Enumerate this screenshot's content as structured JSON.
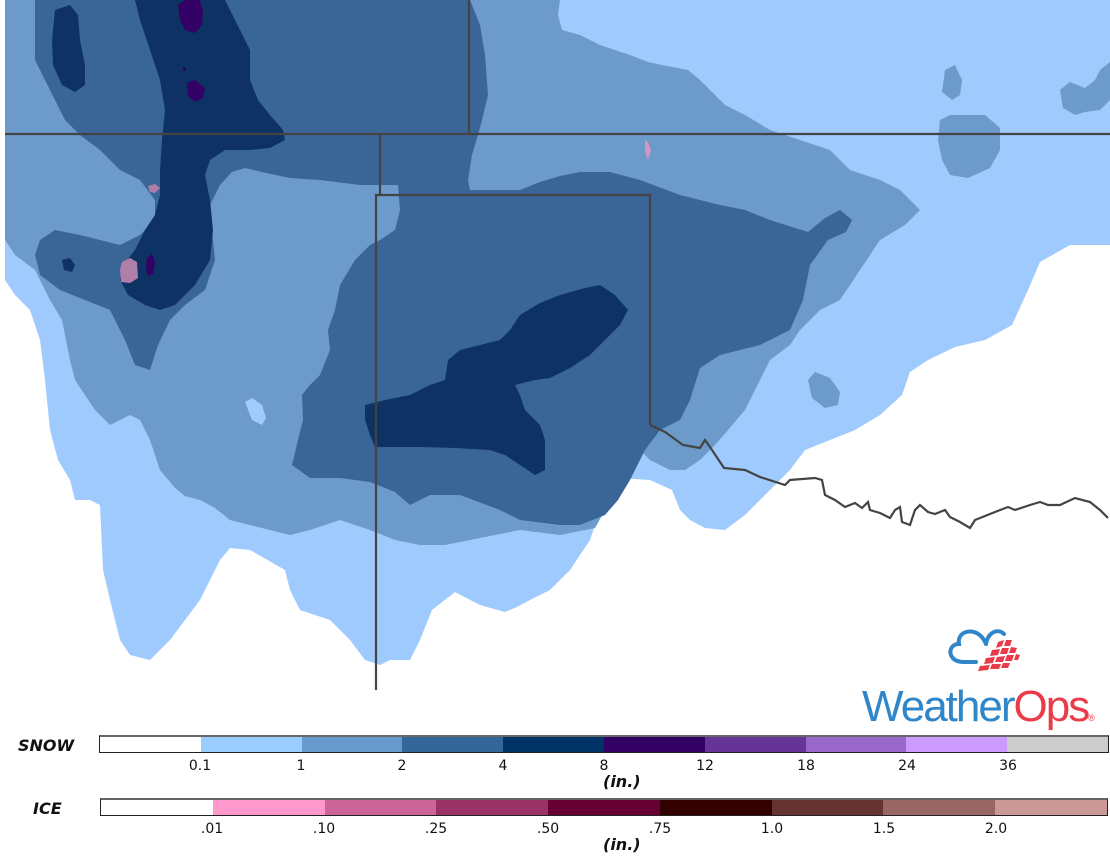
{
  "map": {
    "colors": {
      "none": "#ffffff",
      "s01": "#9fcafd",
      "s1": "#6c9acb",
      "s2": "#3a6697",
      "s4": "#0e3264",
      "s8": "#330066",
      "ice01": "#d396c3",
      "ice10": "#b07fa8",
      "border": "#444444"
    }
  },
  "logo": {
    "brand_part1": "Weather",
    "brand_part2": "Ops",
    "registered": "®",
    "colors": {
      "blue": "#2f86c9",
      "red": "#ea3b48"
    }
  },
  "legend": {
    "snow": {
      "title": "SNOW",
      "unit": "(in.)",
      "segments": [
        {
          "color": "#ffffff"
        },
        {
          "color": "#99ccff"
        },
        {
          "color": "#6699cc"
        },
        {
          "color": "#336699"
        },
        {
          "color": "#003366"
        },
        {
          "color": "#330066"
        },
        {
          "color": "#663399"
        },
        {
          "color": "#9966cc"
        },
        {
          "color": "#cc99ff"
        },
        {
          "color": "#cccccc"
        }
      ],
      "ticks": [
        "0.1",
        "1",
        "2",
        "4",
        "8",
        "12",
        "18",
        "24",
        "36"
      ]
    },
    "ice": {
      "title": "ICE",
      "unit": "(in.)",
      "segments": [
        {
          "color": "#ffffff"
        },
        {
          "color": "#ff99cc"
        },
        {
          "color": "#cc6699"
        },
        {
          "color": "#993366"
        },
        {
          "color": "#660033"
        },
        {
          "color": "#330000"
        },
        {
          "color": "#663333"
        },
        {
          "color": "#996666"
        },
        {
          "color": "#cc9999"
        }
      ],
      "ticks": [
        ".01",
        ".10",
        ".25",
        ".50",
        ".75",
        "1.0",
        "1.5",
        "2.0"
      ]
    }
  }
}
